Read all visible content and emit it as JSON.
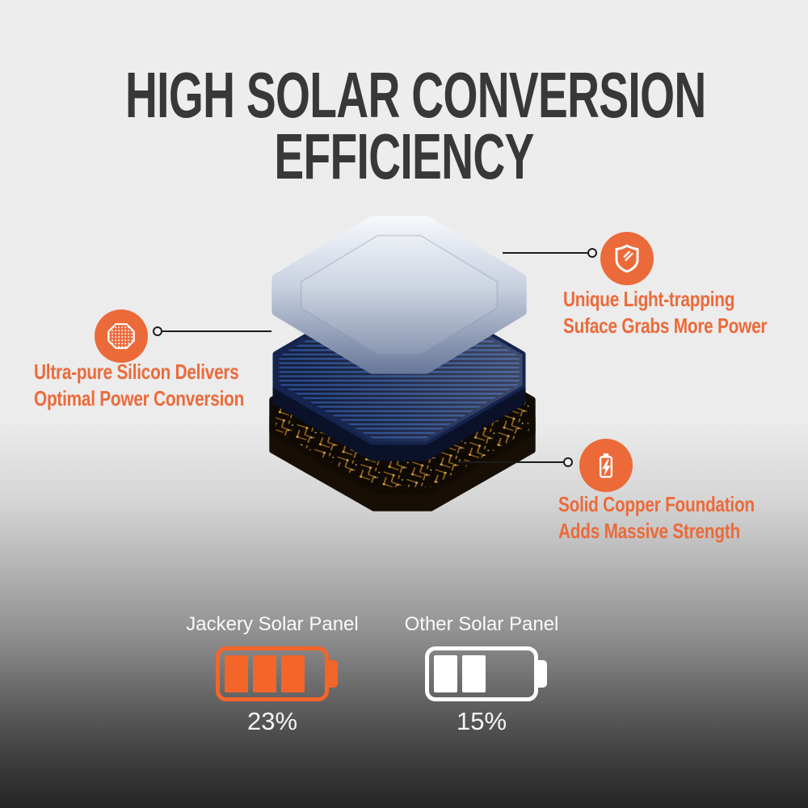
{
  "colors": {
    "accent": "#EC6A3A",
    "jackery": "#F4652A",
    "title": "#383838",
    "leader_line": "#1C1C1C"
  },
  "title": {
    "line1": "HIGH SOLAR CONVERSION",
    "line2": "EFFICIENCY"
  },
  "illustration": {
    "layers": [
      "glass-light-trapping-surface",
      "blue-silicon-cell",
      "copper-foundation"
    ]
  },
  "callouts": {
    "silicon": {
      "icon": "silicon-wafer-icon",
      "line1": "Ultra-pure Silicon Delivers",
      "line2": "Optimal Power Conversion"
    },
    "surface": {
      "icon": "shield-check-icon",
      "line1": "Unique Light-trapping",
      "line2": "Suface Grabs More Power"
    },
    "copper": {
      "icon": "battery-lightning-icon",
      "line1": "Solid Copper Foundation",
      "line2": "Adds Massive Strength"
    }
  },
  "comparison": {
    "jackery": {
      "label": "Jackery Solar Panel",
      "value": "23%",
      "bars_filled": 3,
      "bars_total": 4
    },
    "other": {
      "label": "Other Solar Panel",
      "value": "15%",
      "bars_filled": 2,
      "bars_total": 4
    }
  }
}
